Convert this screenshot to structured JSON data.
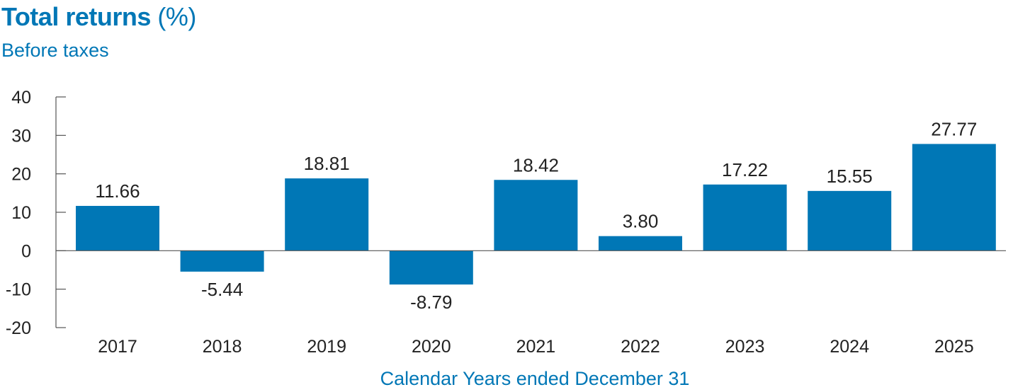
{
  "chart_data": {
    "type": "bar",
    "title_bold": "Total returns",
    "title_unit": "(%)",
    "subtitle": "Before taxes",
    "xlabel": "Calendar Years ended December 31",
    "ylabel": "",
    "categories": [
      "2017",
      "2018",
      "2019",
      "2020",
      "2021",
      "2022",
      "2023",
      "2024",
      "2025"
    ],
    "values": [
      11.66,
      -5.44,
      18.81,
      -8.79,
      18.42,
      3.8,
      17.22,
      15.55,
      27.77
    ],
    "value_labels": [
      "11.66",
      "-5.44",
      "18.81",
      "-8.79",
      "18.42",
      "3.80",
      "17.22",
      "15.55",
      "27.77"
    ],
    "ylim": [
      -20,
      40
    ],
    "yticks": [
      40,
      30,
      20,
      10,
      0,
      -10,
      -20
    ],
    "ytick_labels": [
      "40",
      "30",
      "20",
      "10",
      "0",
      "-10",
      "-20"
    ],
    "grid": false,
    "legend": "none",
    "bar_color": "#0077b6",
    "text_color": "#222222",
    "accent_color": "#0077b6"
  }
}
